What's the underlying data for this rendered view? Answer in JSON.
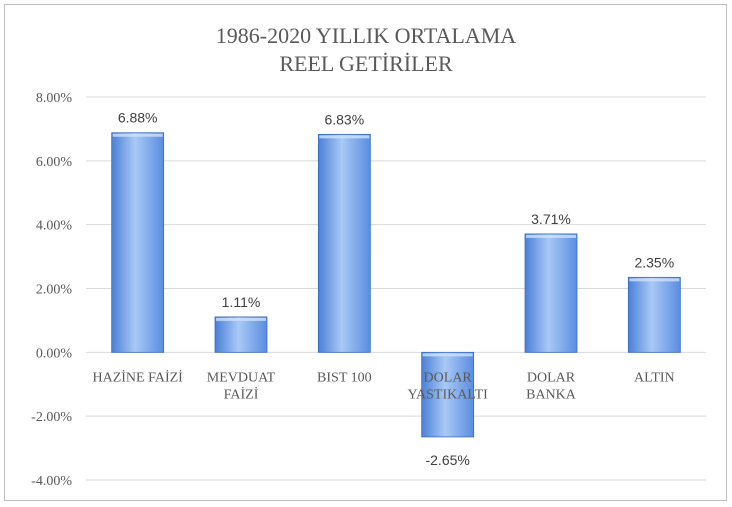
{
  "chart_data": {
    "type": "bar",
    "title_lines": [
      "1986-2020 YILLIK ORTALAMA",
      "REEL GETİRİLER"
    ],
    "categories": [
      [
        "HAZİNE FAİZİ"
      ],
      [
        "MEVDUAT",
        "FAİZİ"
      ],
      [
        "BIST 100"
      ],
      [
        "DOLAR",
        "YASTIKALTI"
      ],
      [
        "DOLAR",
        "BANKA"
      ],
      [
        "ALTIN"
      ]
    ],
    "values": [
      6.88,
      1.11,
      6.83,
      -2.65,
      3.71,
      2.35
    ],
    "value_labels": [
      "6.88%",
      "1.11%",
      "6.83%",
      "-2.65%",
      "3.71%",
      "2.35%"
    ],
    "y_ticks": [
      8,
      6,
      4,
      2,
      0,
      -2,
      -4
    ],
    "y_tick_labels": [
      "8.00%",
      "6.00%",
      "4.00%",
      "2.00%",
      "0.00%",
      "-2.00%",
      "-4.00%"
    ],
    "ylim": [
      -4,
      8
    ],
    "grid": true,
    "legend": "none",
    "colors": {
      "bar_top": "#a9c9f5",
      "bar_mid": "#6e9fe6",
      "bar_bottom": "#3f74cc",
      "grid": "#d9d9d9",
      "text": "#595959"
    }
  }
}
